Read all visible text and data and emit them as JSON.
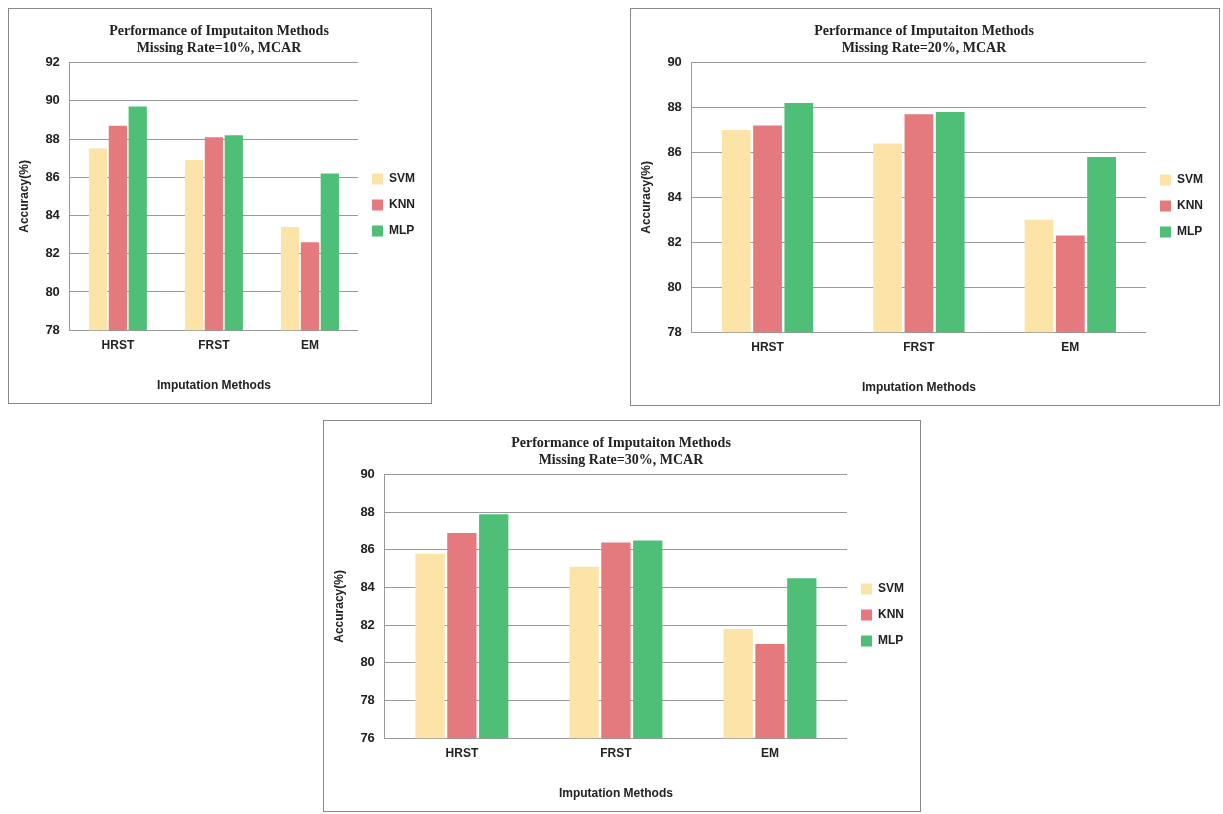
{
  "chart_data": [
    {
      "type": "bar",
      "title": [
        "Performance of Imputaiton Methods",
        "Missing Rate=10%, MCAR"
      ],
      "xlabel": "Imputation Methods",
      "ylabel": "Accuracy(%)",
      "categories": [
        "HRST",
        "FRST",
        "EM"
      ],
      "ylim": [
        78,
        92
      ],
      "yticks": [
        78,
        80,
        82,
        84,
        86,
        88,
        90,
        92
      ],
      "grid": "y",
      "legend": "right",
      "series": [
        {
          "name": "SVM",
          "color": "#fce4a8",
          "values": [
            87.5,
            86.9,
            83.4
          ]
        },
        {
          "name": "KNN",
          "color": "#e57a7e",
          "values": [
            88.7,
            88.1,
            82.6
          ]
        },
        {
          "name": "MLP",
          "color": "#4fbf78",
          "values": [
            89.7,
            88.2,
            86.2
          ]
        }
      ]
    },
    {
      "type": "bar",
      "title": [
        "Performance of Imputaiton Methods",
        "Missing Rate=20%, MCAR"
      ],
      "xlabel": "Imputation Methods",
      "ylabel": "Accuracy(%)",
      "categories": [
        "HRST",
        "FRST",
        "EM"
      ],
      "ylim": [
        78,
        90
      ],
      "yticks": [
        78,
        80,
        82,
        84,
        86,
        88,
        90
      ],
      "grid": "y",
      "legend": "right",
      "series": [
        {
          "name": "SVM",
          "color": "#fce4a8",
          "values": [
            87.0,
            86.4,
            83.0
          ]
        },
        {
          "name": "KNN",
          "color": "#e57a7e",
          "values": [
            87.2,
            87.7,
            82.3
          ]
        },
        {
          "name": "MLP",
          "color": "#4fbf78",
          "values": [
            88.2,
            87.8,
            85.8
          ]
        }
      ]
    },
    {
      "type": "bar",
      "title": [
        "Performance of Imputaiton Methods",
        "Missing Rate=30%, MCAR"
      ],
      "xlabel": "Imputation Methods",
      "ylabel": "Accuracy(%)",
      "categories": [
        "HRST",
        "FRST",
        "EM"
      ],
      "ylim": [
        76,
        90
      ],
      "yticks": [
        76,
        78,
        80,
        82,
        84,
        86,
        88,
        90
      ],
      "grid": "y",
      "legend": "right",
      "series": [
        {
          "name": "SVM",
          "color": "#fce4a8",
          "values": [
            85.8,
            85.1,
            81.8
          ]
        },
        {
          "name": "KNN",
          "color": "#e57a7e",
          "values": [
            86.9,
            86.4,
            81.0
          ]
        },
        {
          "name": "MLP",
          "color": "#4fbf78",
          "values": [
            87.9,
            86.5,
            84.5
          ]
        }
      ]
    }
  ]
}
